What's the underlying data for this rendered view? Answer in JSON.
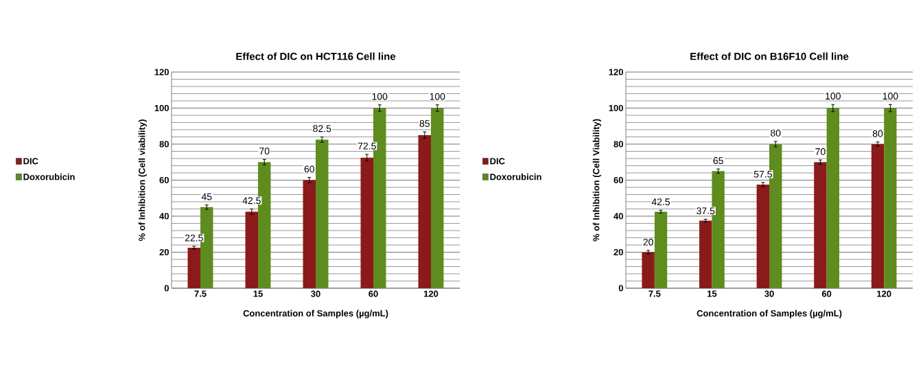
{
  "chart_data": [
    {
      "type": "bar",
      "title": "Effect of DIC  on HCT116 Cell line",
      "xlabel": "Concentration of Samples (µg/mL)",
      "ylabel": "% of Inhibition  (Cell viability)",
      "categories": [
        "7.5",
        "15",
        "30",
        "60",
        "120"
      ],
      "series": [
        {
          "name": "DIC",
          "color": "#8b1a1a",
          "values": [
            22.5,
            42.5,
            60,
            72.5,
            85
          ],
          "errors": [
            0.8,
            1.5,
            1.5,
            1.8,
            1.8
          ]
        },
        {
          "name": "Doxorubicin",
          "color": "#5f8c1e",
          "values": [
            45,
            70,
            82.5,
            100,
            100
          ],
          "errors": [
            1.2,
            1.5,
            1.5,
            1.8,
            1.8
          ]
        }
      ],
      "ylim": [
        0,
        120
      ],
      "yticks": [
        0,
        20,
        40,
        60,
        80,
        100,
        120
      ],
      "grid": "y",
      "legend": "left",
      "data_labels": true
    },
    {
      "type": "bar",
      "title": "Effect of DIC  on B16F10 Cell line",
      "xlabel": "Concentration of Samples (µg/mL)",
      "ylabel": "% of Inhibition  (Cell Viability)",
      "categories": [
        "7.5",
        "15",
        "30",
        "60",
        "120"
      ],
      "series": [
        {
          "name": "DIC",
          "color": "#8b1a1a",
          "values": [
            20,
            37.5,
            57.5,
            70,
            80
          ],
          "errors": [
            1,
            0.8,
            1.2,
            1.2,
            1.2
          ]
        },
        {
          "name": "Doxorubicin",
          "color": "#5f8c1e",
          "values": [
            42.5,
            65,
            80,
            100,
            100
          ],
          "errors": [
            0.8,
            1.2,
            1.5,
            2,
            2
          ]
        }
      ],
      "ylim": [
        0,
        120
      ],
      "yticks": [
        0,
        20,
        40,
        60,
        80,
        100,
        120
      ],
      "grid": "y",
      "legend": "left",
      "data_labels": true
    }
  ]
}
